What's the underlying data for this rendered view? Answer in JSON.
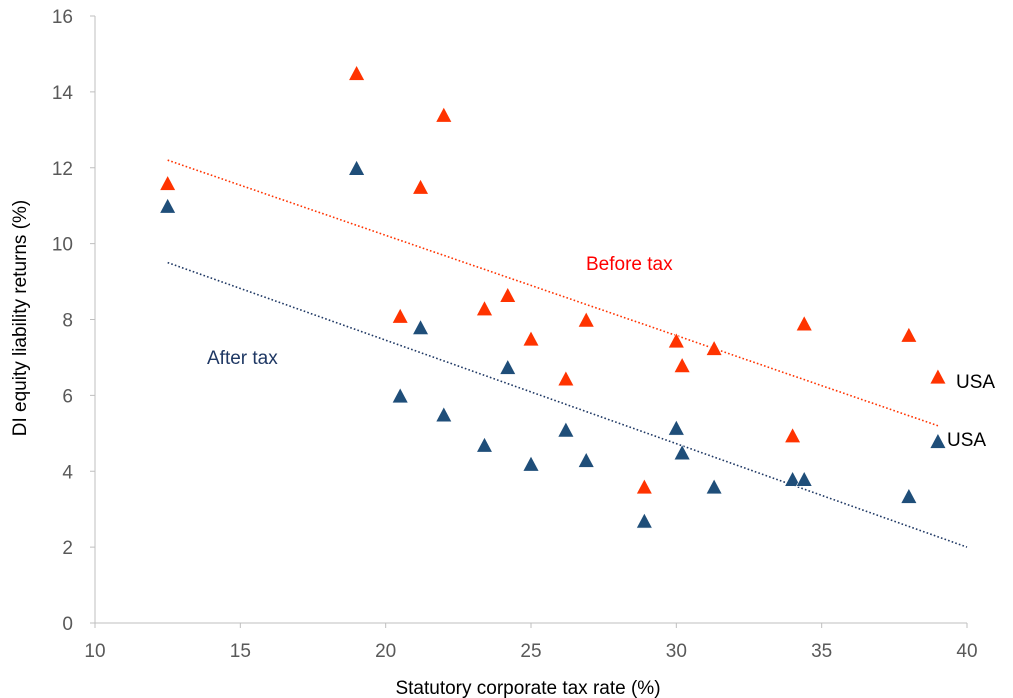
{
  "chart_data": {
    "type": "scatter",
    "xlabel": "Statutory corporate tax rate (%)",
    "ylabel": "DI equity liability returns (%)",
    "xlim": [
      10,
      40
    ],
    "ylim": [
      0,
      16
    ],
    "x_ticks": [
      10,
      15,
      20,
      25,
      30,
      35,
      40
    ],
    "y_ticks": [
      0,
      2,
      4,
      6,
      8,
      10,
      12,
      14,
      16
    ],
    "grid": false,
    "marker": "triangle",
    "series": [
      {
        "name": "Before tax",
        "color": "#ff3300",
        "points": [
          [
            12.5,
            11.6
          ],
          [
            19.0,
            14.5
          ],
          [
            20.5,
            8.1
          ],
          [
            21.2,
            11.5
          ],
          [
            22.0,
            13.4
          ],
          [
            23.4,
            8.3
          ],
          [
            24.2,
            8.65
          ],
          [
            25.0,
            7.5
          ],
          [
            26.2,
            6.45
          ],
          [
            26.9,
            8.0
          ],
          [
            28.9,
            3.6
          ],
          [
            30.0,
            7.45
          ],
          [
            30.2,
            6.8
          ],
          [
            31.3,
            7.25
          ],
          [
            34.0,
            4.95
          ],
          [
            34.4,
            7.9
          ],
          [
            38.0,
            7.6
          ],
          [
            39.0,
            6.5
          ]
        ],
        "trendline": {
          "x": [
            12.5,
            39.0
          ],
          "y": [
            12.2,
            5.2
          ],
          "color": "#ff3300"
        },
        "label_text": "Before tax"
      },
      {
        "name": "After tax",
        "color": "#1f4e79",
        "points": [
          [
            12.5,
            11.0
          ],
          [
            19.0,
            12.0
          ],
          [
            20.5,
            6.0
          ],
          [
            21.2,
            7.8
          ],
          [
            22.0,
            5.5
          ],
          [
            23.4,
            4.7
          ],
          [
            24.2,
            6.75
          ],
          [
            25.0,
            4.2
          ],
          [
            26.2,
            5.1
          ],
          [
            26.9,
            4.3
          ],
          [
            28.9,
            2.7
          ],
          [
            30.0,
            5.15
          ],
          [
            30.2,
            4.5
          ],
          [
            31.3,
            3.6
          ],
          [
            34.0,
            3.8
          ],
          [
            34.4,
            3.8
          ],
          [
            38.0,
            3.35
          ],
          [
            39.0,
            4.8
          ]
        ],
        "trendline": {
          "x": [
            12.5,
            40.0
          ],
          "y": [
            9.5,
            2.0
          ],
          "color": "#1f3864"
        },
        "label_text": "After tax"
      }
    ],
    "annotations": [
      {
        "text": "USA",
        "x": 39.0,
        "y": 6.5
      },
      {
        "text": "USA",
        "x": 39.0,
        "y": 4.8
      }
    ]
  }
}
